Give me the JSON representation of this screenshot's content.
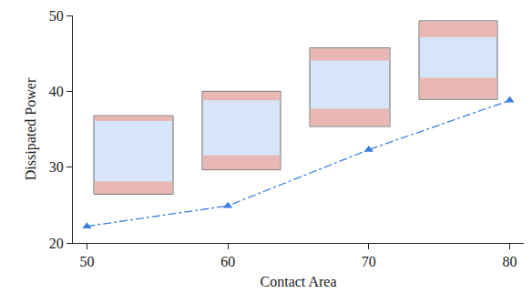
{
  "chart_data": {
    "type": "line",
    "x_label": "Contact Area",
    "y_label": "Dissipated Power",
    "x": [
      50,
      60,
      70,
      80
    ],
    "values": [
      22.2,
      24.9,
      32.3,
      38.8
    ],
    "color": "#3d7fe0",
    "marker": "triangle-up",
    "line_style": "dashdot",
    "xlim": [
      49,
      81
    ],
    "xticks": [
      50,
      60,
      70,
      80
    ],
    "ylim": [
      20,
      50
    ],
    "yticks": [
      20,
      30,
      40,
      50
    ],
    "grid": false
  }
}
